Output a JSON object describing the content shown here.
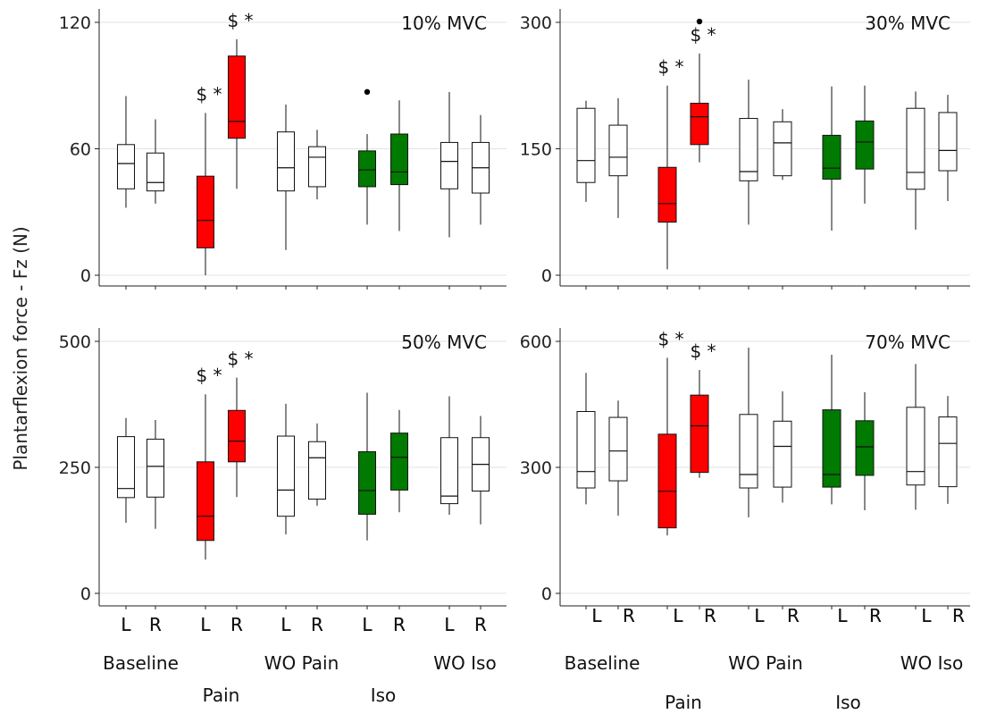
{
  "chart_data": {
    "type": "box",
    "ylabel": "Plantarflexion force - Fz (N)",
    "groups": [
      "Baseline",
      "Pain",
      "WO Pain",
      "Iso",
      "WO Iso"
    ],
    "sides": [
      "L",
      "R"
    ],
    "colors": {
      "neutral": "#ffffff",
      "pain": "#ff0000",
      "iso": "#007a00"
    },
    "panels": [
      {
        "title": "10% MVC",
        "ylim": [
          0,
          120
        ],
        "yticks": [
          0,
          60,
          120
        ],
        "boxes": [
          {
            "group": "Baseline",
            "side": "L",
            "color": "neutral",
            "min": 32,
            "q1": 41,
            "median": 53,
            "q3": 62,
            "max": 85
          },
          {
            "group": "Baseline",
            "side": "R",
            "color": "neutral",
            "min": 34,
            "q1": 40,
            "median": 44,
            "q3": 58,
            "max": 74
          },
          {
            "group": "Pain",
            "side": "L",
            "color": "pain",
            "min": 0,
            "q1": 13,
            "median": 26,
            "q3": 47,
            "max": 77,
            "sig": "$ *"
          },
          {
            "group": "Pain",
            "side": "R",
            "color": "pain",
            "min": 41,
            "q1": 65,
            "median": 73,
            "q3": 104,
            "max": 112,
            "sig": "$ *"
          },
          {
            "group": "WO Pain",
            "side": "L",
            "color": "neutral",
            "min": 12,
            "q1": 40,
            "median": 51,
            "q3": 68,
            "max": 81
          },
          {
            "group": "WO Pain",
            "side": "R",
            "color": "neutral",
            "min": 36,
            "q1": 42,
            "median": 56,
            "q3": 61,
            "max": 69
          },
          {
            "group": "Iso",
            "side": "L",
            "color": "iso",
            "min": 24,
            "q1": 42,
            "median": 50,
            "q3": 59,
            "max": 67,
            "outliers": [
              87
            ]
          },
          {
            "group": "Iso",
            "side": "R",
            "color": "iso",
            "min": 21,
            "q1": 43,
            "median": 49,
            "q3": 67,
            "max": 83
          },
          {
            "group": "WO Iso",
            "side": "L",
            "color": "neutral",
            "min": 18,
            "q1": 41,
            "median": 54,
            "q3": 63,
            "max": 87
          },
          {
            "group": "WO Iso",
            "side": "R",
            "color": "neutral",
            "min": 24,
            "q1": 39,
            "median": 51,
            "q3": 63,
            "max": 76
          }
        ]
      },
      {
        "title": "30% MVC",
        "ylim": [
          0,
          300
        ],
        "yticks": [
          0,
          150,
          300
        ],
        "boxes": [
          {
            "group": "Baseline",
            "side": "L",
            "color": "neutral",
            "min": 87,
            "q1": 110,
            "median": 136,
            "q3": 198,
            "max": 207
          },
          {
            "group": "Baseline",
            "side": "R",
            "color": "neutral",
            "min": 68,
            "q1": 118,
            "median": 140,
            "q3": 178,
            "max": 210
          },
          {
            "group": "Pain",
            "side": "L",
            "color": "pain",
            "min": 7,
            "q1": 63,
            "median": 85,
            "q3": 128,
            "max": 225,
            "sig": "$ *"
          },
          {
            "group": "Pain",
            "side": "R",
            "color": "pain",
            "min": 134,
            "q1": 155,
            "median": 188,
            "q3": 204,
            "max": 263,
            "sig": "$ *",
            "outliers": [
              301
            ]
          },
          {
            "group": "WO Pain",
            "side": "L",
            "color": "neutral",
            "min": 60,
            "q1": 112,
            "median": 123,
            "q3": 186,
            "max": 232
          },
          {
            "group": "WO Pain",
            "side": "R",
            "color": "neutral",
            "min": 113,
            "q1": 118,
            "median": 157,
            "q3": 182,
            "max": 197
          },
          {
            "group": "Iso",
            "side": "L",
            "color": "iso",
            "min": 53,
            "q1": 114,
            "median": 127,
            "q3": 166,
            "max": 224
          },
          {
            "group": "Iso",
            "side": "R",
            "color": "iso",
            "min": 85,
            "q1": 126,
            "median": 158,
            "q3": 183,
            "max": 225
          },
          {
            "group": "WO Iso",
            "side": "L",
            "color": "neutral",
            "min": 54,
            "q1": 102,
            "median": 122,
            "q3": 198,
            "max": 218
          },
          {
            "group": "WO Iso",
            "side": "R",
            "color": "neutral",
            "min": 88,
            "q1": 124,
            "median": 148,
            "q3": 193,
            "max": 214
          }
        ]
      },
      {
        "title": "50% MVC",
        "ylim": [
          0,
          500
        ],
        "yticks": [
          0,
          250,
          500
        ],
        "boxes": [
          {
            "group": "Baseline",
            "side": "L",
            "color": "neutral",
            "min": 140,
            "q1": 190,
            "median": 208,
            "q3": 311,
            "max": 348
          },
          {
            "group": "Baseline",
            "side": "R",
            "color": "neutral",
            "min": 128,
            "q1": 191,
            "median": 252,
            "q3": 306,
            "max": 344
          },
          {
            "group": "Pain",
            "side": "L",
            "color": "pain",
            "min": 67,
            "q1": 105,
            "median": 153,
            "q3": 261,
            "max": 395,
            "sig": "$ *"
          },
          {
            "group": "Pain",
            "side": "R",
            "color": "pain",
            "min": 191,
            "q1": 261,
            "median": 302,
            "q3": 363,
            "max": 428,
            "sig": "$ *"
          },
          {
            "group": "WO Pain",
            "side": "L",
            "color": "neutral",
            "min": 117,
            "q1": 153,
            "median": 205,
            "q3": 312,
            "max": 376
          },
          {
            "group": "WO Pain",
            "side": "R",
            "color": "neutral",
            "min": 174,
            "q1": 187,
            "median": 269,
            "q3": 301,
            "max": 337
          },
          {
            "group": "Iso",
            "side": "L",
            "color": "iso",
            "min": 105,
            "q1": 157,
            "median": 204,
            "q3": 281,
            "max": 398
          },
          {
            "group": "Iso",
            "side": "R",
            "color": "iso",
            "min": 161,
            "q1": 205,
            "median": 270,
            "q3": 318,
            "max": 364
          },
          {
            "group": "WO Iso",
            "side": "L",
            "color": "neutral",
            "min": 156,
            "q1": 178,
            "median": 193,
            "q3": 309,
            "max": 391
          },
          {
            "group": "WO Iso",
            "side": "R",
            "color": "neutral",
            "min": 137,
            "q1": 203,
            "median": 256,
            "q3": 309,
            "max": 352
          }
        ]
      },
      {
        "title": "70% MVC",
        "ylim": [
          0,
          600
        ],
        "yticks": [
          0,
          300,
          600
        ],
        "boxes": [
          {
            "group": "Baseline",
            "side": "L",
            "color": "neutral",
            "min": 212,
            "q1": 251,
            "median": 290,
            "q3": 433,
            "max": 525
          },
          {
            "group": "Baseline",
            "side": "R",
            "color": "neutral",
            "min": 185,
            "q1": 268,
            "median": 339,
            "q3": 419,
            "max": 459
          },
          {
            "group": "Pain",
            "side": "L",
            "color": "pain",
            "min": 138,
            "q1": 156,
            "median": 243,
            "q3": 379,
            "max": 561,
            "sig": "$ *"
          },
          {
            "group": "Pain",
            "side": "R",
            "color": "pain",
            "min": 275,
            "q1": 288,
            "median": 399,
            "q3": 472,
            "max": 532,
            "sig": "$ *"
          },
          {
            "group": "WO Pain",
            "side": "L",
            "color": "neutral",
            "min": 181,
            "q1": 251,
            "median": 283,
            "q3": 426,
            "max": 585
          },
          {
            "group": "WO Pain",
            "side": "R",
            "color": "neutral",
            "min": 216,
            "q1": 253,
            "median": 350,
            "q3": 410,
            "max": 481
          },
          {
            "group": "Iso",
            "side": "L",
            "color": "iso",
            "min": 212,
            "q1": 253,
            "median": 283,
            "q3": 437,
            "max": 568
          },
          {
            "group": "Iso",
            "side": "R",
            "color": "iso",
            "min": 198,
            "q1": 281,
            "median": 349,
            "q3": 411,
            "max": 479
          },
          {
            "group": "WO Iso",
            "side": "L",
            "color": "neutral",
            "min": 199,
            "q1": 258,
            "median": 290,
            "q3": 443,
            "max": 546
          },
          {
            "group": "WO Iso",
            "side": "R",
            "color": "neutral",
            "min": 213,
            "q1": 254,
            "median": 357,
            "q3": 420,
            "max": 470
          }
        ]
      }
    ]
  }
}
